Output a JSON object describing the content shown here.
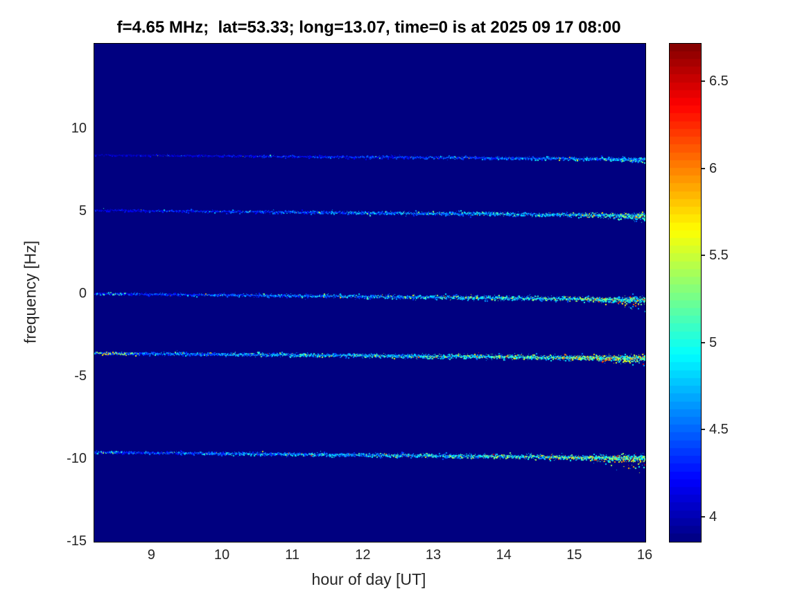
{
  "figure": {
    "background": "#ffffff"
  },
  "chart_data": {
    "type": "heatmap",
    "title": "f=4.65 MHz;  lat=53.33; long=13.07, time=0 is at 2025 09 17 08:00",
    "xlabel": "hour of day [UT]",
    "ylabel": "frequency [Hz]",
    "xlim": [
      8.18,
      16
    ],
    "ylim": [
      -15,
      15.17
    ],
    "x_ticks": [
      9,
      10,
      11,
      12,
      13,
      14,
      15,
      16
    ],
    "y_ticks": [
      10,
      5,
      0,
      -5,
      -10,
      -15
    ],
    "colormap": "jet",
    "grid": false,
    "background_value": 3.86,
    "colorbar": {
      "min": 3.86,
      "max": 6.72,
      "ticks": [
        6.5,
        6,
        5.5,
        5,
        4.5,
        4
      ],
      "segments": 64,
      "position": "right"
    },
    "spectral_lines": [
      {
        "name": "doppler-trace-+8.3Hz",
        "f0": 8.45,
        "f1": 8.2,
        "v0": 3.95,
        "v1": 4.3,
        "s0": 0.15,
        "s1": 0.45,
        "d0": 0.7,
        "d1": 2.2,
        "w0": 0.7,
        "w1": 1.4,
        "tail": {
          "from": 0.9,
          "spread": 3,
          "hotP": 0.12,
          "a": 4.8,
          "b": 5.6
        }
      },
      {
        "name": "doppler-trace-+5Hz",
        "f0": 5.1,
        "f1": 4.8,
        "v0": 4.0,
        "v1": 4.45,
        "s0": 0.22,
        "s1": 0.6,
        "d0": 1.2,
        "d1": 2.8,
        "w0": 0.8,
        "w1": 1.8,
        "tail": {
          "from": 0.86,
          "spread": 5,
          "hotP": 0.2,
          "a": 5.0,
          "b": 6.0
        }
      },
      {
        "name": "doppler-trace-0Hz",
        "f0": 0.05,
        "f1": -0.3,
        "v0": 4.05,
        "v1": 4.55,
        "s0": 0.28,
        "s1": 0.65,
        "d0": 1.5,
        "d1": 3.0,
        "w0": 0.8,
        "w1": 2.0,
        "sh": {
          "until": 0.06,
          "p": 0.3,
          "a": 4.7,
          "b": 5.3
        },
        "tail": {
          "from": 0.88,
          "spread": 7,
          "hotP": 0.25,
          "a": 5.2,
          "b": 6.3
        }
      },
      {
        "name": "doppler-trace--3.7Hz",
        "f0": -3.55,
        "f1": -3.85,
        "v0": 4.15,
        "v1": 4.65,
        "s0": 0.35,
        "s1": 0.7,
        "d0": 2.2,
        "d1": 3.4,
        "w0": 1.0,
        "w1": 2.0,
        "sh": {
          "until": 0.08,
          "p": 0.4,
          "a": 5.0,
          "b": 5.9
        },
        "tail": {
          "from": 0.84,
          "spread": 5,
          "hotP": 0.3,
          "a": 5.3,
          "b": 6.4
        }
      },
      {
        "name": "doppler-trace--9.7Hz",
        "f0": -9.55,
        "f1": -9.9,
        "v0": 4.1,
        "v1": 4.6,
        "s0": 0.3,
        "s1": 0.7,
        "d0": 2.0,
        "d1": 3.2,
        "w0": 0.9,
        "w1": 2.0,
        "sh": {
          "until": 0.05,
          "p": 0.3,
          "a": 4.9,
          "b": 5.6
        },
        "tail": {
          "from": 0.85,
          "spread": 8,
          "hotP": 0.3,
          "a": 5.3,
          "b": 6.4
        }
      }
    ]
  }
}
